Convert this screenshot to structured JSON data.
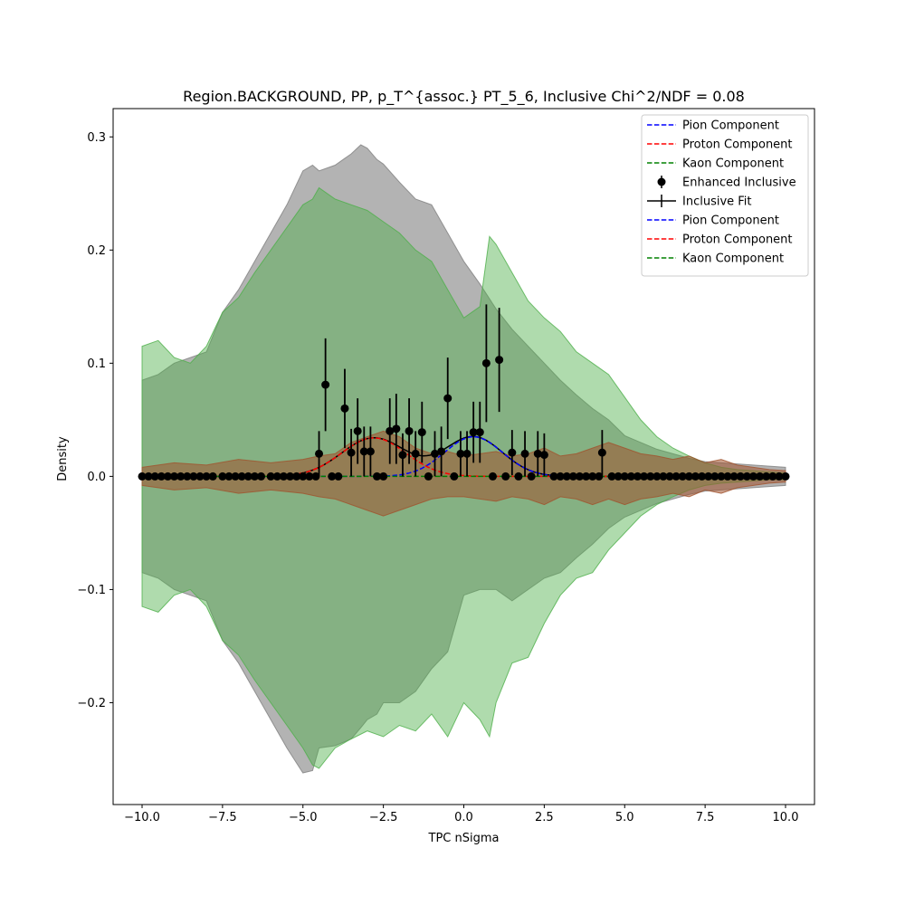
{
  "chart_data": {
    "type": "scatter",
    "title": "Region.BACKGROUND, PP, p_T^{assoc.} PT_5_6, Inclusive Chi^2/NDF = 0.08",
    "xlabel": "TPC nSigma",
    "ylabel": "Density",
    "xlim": [
      -10.9,
      10.9
    ],
    "ylim": [
      -0.29,
      0.325
    ],
    "x_ticks": [
      -10.0,
      -7.5,
      -5.0,
      -2.5,
      0.0,
      2.5,
      5.0,
      7.5,
      10.0
    ],
    "x_tick_labels": [
      "−10.0",
      "−7.5",
      "−5.0",
      "−2.5",
      "0.0",
      "2.5",
      "5.0",
      "7.5",
      "10.0"
    ],
    "y_ticks": [
      -0.2,
      -0.1,
      0.0,
      0.1,
      0.2,
      0.3
    ],
    "y_tick_labels": [
      "−0.2",
      "−0.1",
      "0.0",
      "0.1",
      "0.2",
      "0.3"
    ],
    "grid": false,
    "legend_position": "top-right",
    "legend": [
      {
        "label": "Pion Component",
        "style": "dashed",
        "color": "#0000ff"
      },
      {
        "label": "Proton Component",
        "style": "dashed",
        "color": "#ff0000"
      },
      {
        "label": "Kaon Component",
        "style": "dashed",
        "color": "#008000"
      },
      {
        "label": "Enhanced Inclusive",
        "style": "marker",
        "color": "#000000"
      },
      {
        "label": "Inclusive Fit",
        "style": "errorline",
        "color": "#000000"
      },
      {
        "label": "Pion Component",
        "style": "dashed",
        "color": "#0000ff"
      },
      {
        "label": "Proton Component",
        "style": "dashed",
        "color": "#ff0000"
      },
      {
        "label": "Kaon Component",
        "style": "dashed",
        "color": "#008000"
      }
    ],
    "bands": [
      {
        "name": "gray band",
        "color": "#808080",
        "opacity": 0.6,
        "x": [
          -10.0,
          -9.5,
          -9.0,
          -8.5,
          -8.0,
          -7.5,
          -7.0,
          -6.5,
          -6.0,
          -5.5,
          -5.0,
          -4.7,
          -4.5,
          -4.0,
          -3.5,
          -3.2,
          -3.0,
          -2.7,
          -2.5,
          -2.0,
          -1.5,
          -1.0,
          -0.5,
          0.0,
          0.5,
          1.0,
          1.5,
          2.0,
          2.5,
          3.0,
          3.5,
          4.0,
          4.5,
          5.0,
          5.5,
          6.0,
          6.5,
          7.0,
          7.5,
          8.0,
          8.5,
          9.0,
          9.5,
          10.0
        ],
        "upper": [
          0.085,
          0.09,
          0.1,
          0.105,
          0.11,
          0.145,
          0.165,
          0.19,
          0.215,
          0.24,
          0.27,
          0.275,
          0.27,
          0.275,
          0.285,
          0.293,
          0.29,
          0.28,
          0.276,
          0.26,
          0.245,
          0.24,
          0.215,
          0.19,
          0.17,
          0.148,
          0.13,
          0.115,
          0.1,
          0.085,
          0.072,
          0.06,
          0.05,
          0.036,
          0.03,
          0.024,
          0.02,
          0.016,
          0.013,
          0.012,
          0.011,
          0.01,
          0.009,
          0.008
        ],
        "lower": [
          -0.085,
          -0.09,
          -0.1,
          -0.105,
          -0.11,
          -0.145,
          -0.165,
          -0.19,
          -0.215,
          -0.24,
          -0.262,
          -0.26,
          -0.24,
          -0.238,
          -0.232,
          -0.222,
          -0.215,
          -0.21,
          -0.2,
          -0.2,
          -0.19,
          -0.17,
          -0.155,
          -0.105,
          -0.1,
          -0.1,
          -0.11,
          -0.1,
          -0.09,
          -0.085,
          -0.072,
          -0.06,
          -0.046,
          -0.036,
          -0.03,
          -0.024,
          -0.02,
          -0.016,
          -0.013,
          -0.012,
          -0.011,
          -0.01,
          -0.009,
          -0.008
        ]
      },
      {
        "name": "green band",
        "color": "#4daf4a",
        "opacity": 0.45,
        "x": [
          -10.0,
          -9.5,
          -9.0,
          -8.5,
          -8.0,
          -7.5,
          -7.0,
          -6.5,
          -6.0,
          -5.5,
          -5.0,
          -4.7,
          -4.5,
          -4.0,
          -3.5,
          -3.0,
          -2.5,
          -2.0,
          -1.5,
          -1.0,
          -0.5,
          0.0,
          0.5,
          0.8,
          1.0,
          1.5,
          2.0,
          2.5,
          3.0,
          3.5,
          4.0,
          4.5,
          5.0,
          5.5,
          6.0,
          6.5,
          7.0,
          7.5,
          8.0,
          8.5,
          9.0,
          9.5,
          10.0
        ],
        "upper": [
          0.115,
          0.12,
          0.105,
          0.1,
          0.115,
          0.145,
          0.158,
          0.18,
          0.2,
          0.22,
          0.24,
          0.245,
          0.255,
          0.245,
          0.24,
          0.235,
          0.225,
          0.215,
          0.2,
          0.19,
          0.165,
          0.14,
          0.15,
          0.212,
          0.205,
          0.18,
          0.155,
          0.14,
          0.128,
          0.11,
          0.1,
          0.09,
          0.07,
          0.05,
          0.035,
          0.025,
          0.018,
          0.012,
          0.008,
          0.006,
          0.005,
          0.004,
          0.003
        ],
        "lower": [
          -0.115,
          -0.12,
          -0.105,
          -0.1,
          -0.115,
          -0.145,
          -0.158,
          -0.18,
          -0.2,
          -0.22,
          -0.24,
          -0.255,
          -0.258,
          -0.24,
          -0.232,
          -0.225,
          -0.23,
          -0.22,
          -0.225,
          -0.21,
          -0.23,
          -0.2,
          -0.215,
          -0.23,
          -0.2,
          -0.165,
          -0.16,
          -0.13,
          -0.105,
          -0.09,
          -0.085,
          -0.065,
          -0.05,
          -0.035,
          -0.025,
          -0.018,
          -0.012,
          -0.008,
          -0.006,
          -0.005,
          -0.004,
          -0.003,
          -0.003
        ]
      },
      {
        "name": "brown band",
        "color": "#a0522d",
        "opacity": 0.55,
        "x": [
          -10.0,
          -9.0,
          -8.0,
          -7.0,
          -6.0,
          -5.0,
          -4.5,
          -4.0,
          -3.5,
          -3.0,
          -2.5,
          -2.0,
          -1.5,
          -1.0,
          -0.5,
          0.0,
          0.5,
          1.0,
          1.5,
          2.0,
          2.5,
          3.0,
          3.5,
          4.0,
          4.5,
          5.0,
          5.5,
          6.0,
          6.5,
          7.0,
          7.5,
          8.0,
          8.5,
          9.0,
          9.5,
          10.0
        ],
        "upper": [
          0.008,
          0.012,
          0.01,
          0.015,
          0.012,
          0.015,
          0.018,
          0.02,
          0.03,
          0.035,
          0.04,
          0.035,
          0.025,
          0.02,
          0.022,
          0.018,
          0.02,
          0.022,
          0.018,
          0.02,
          0.025,
          0.018,
          0.02,
          0.025,
          0.03,
          0.025,
          0.02,
          0.018,
          0.015,
          0.018,
          0.012,
          0.015,
          0.01,
          0.008,
          0.006,
          0.005
        ],
        "lower": [
          -0.008,
          -0.012,
          -0.01,
          -0.015,
          -0.012,
          -0.015,
          -0.018,
          -0.02,
          -0.025,
          -0.03,
          -0.035,
          -0.03,
          -0.025,
          -0.02,
          -0.018,
          -0.018,
          -0.02,
          -0.022,
          -0.018,
          -0.02,
          -0.025,
          -0.018,
          -0.02,
          -0.025,
          -0.02,
          -0.025,
          -0.02,
          -0.018,
          -0.015,
          -0.018,
          -0.012,
          -0.015,
          -0.01,
          -0.008,
          -0.006,
          -0.005
        ]
      }
    ],
    "components": [
      {
        "name": "Pion Component",
        "color": "#0000ff",
        "amplitude": 0.035,
        "mean": 0.3,
        "sigma": 0.9
      },
      {
        "name": "Proton Component",
        "color": "#ff0000",
        "amplitude": 0.034,
        "mean": -2.8,
        "sigma": 1.0
      },
      {
        "name": "Kaon Component",
        "color": "#008000",
        "amplitude": 0.0,
        "mean": 0.0,
        "sigma": 1.0
      }
    ],
    "zero_points_x": [
      -10.0,
      -9.8,
      -9.6,
      -9.4,
      -9.2,
      -9.0,
      -8.8,
      -8.6,
      -8.4,
      -8.2,
      -8.0,
      -7.8,
      -7.5,
      -7.3,
      -7.1,
      -6.9,
      -6.7,
      -6.5,
      -6.3,
      -6.0,
      -5.8,
      -5.6,
      -5.4,
      -5.2,
      -5.0,
      -4.8,
      -4.6,
      -4.1,
      -3.9,
      -2.7,
      -2.5,
      -1.1,
      -0.3,
      0.9,
      1.3,
      1.7,
      2.1,
      2.8,
      3.0,
      3.2,
      3.4,
      3.6,
      3.8,
      4.0,
      4.2,
      4.6,
      4.8,
      5.0,
      5.2,
      5.4,
      5.6,
      5.8,
      6.0,
      6.2,
      6.4,
      6.6,
      6.8,
      7.0,
      7.2,
      7.4,
      7.6,
      7.8,
      8.0,
      8.2,
      8.4,
      8.6,
      8.8,
      9.0,
      9.2,
      9.4,
      9.6,
      9.8,
      10.0
    ],
    "points": [
      {
        "x": -4.5,
        "y": 0.02,
        "err": 0.02
      },
      {
        "x": -4.3,
        "y": 0.081,
        "err": 0.041
      },
      {
        "x": -3.7,
        "y": 0.06,
        "err": 0.035
      },
      {
        "x": -3.5,
        "y": 0.021,
        "err": 0.021
      },
      {
        "x": -3.3,
        "y": 0.04,
        "err": 0.029
      },
      {
        "x": -3.1,
        "y": 0.022,
        "err": 0.022
      },
      {
        "x": -2.9,
        "y": 0.022,
        "err": 0.022
      },
      {
        "x": -2.3,
        "y": 0.04,
        "err": 0.029
      },
      {
        "x": -2.1,
        "y": 0.042,
        "err": 0.031
      },
      {
        "x": -1.9,
        "y": 0.019,
        "err": 0.019
      },
      {
        "x": -1.7,
        "y": 0.04,
        "err": 0.029
      },
      {
        "x": -1.5,
        "y": 0.02,
        "err": 0.02
      },
      {
        "x": -1.3,
        "y": 0.039,
        "err": 0.027
      },
      {
        "x": -0.9,
        "y": 0.02,
        "err": 0.02
      },
      {
        "x": -0.7,
        "y": 0.022,
        "err": 0.022
      },
      {
        "x": -0.5,
        "y": 0.069,
        "err": 0.036
      },
      {
        "x": -0.1,
        "y": 0.02,
        "err": 0.02
      },
      {
        "x": 0.1,
        "y": 0.02,
        "err": 0.02
      },
      {
        "x": 0.3,
        "y": 0.039,
        "err": 0.027
      },
      {
        "x": 0.5,
        "y": 0.039,
        "err": 0.027
      },
      {
        "x": 0.7,
        "y": 0.1,
        "err": 0.052
      },
      {
        "x": 1.1,
        "y": 0.103,
        "err": 0.046
      },
      {
        "x": 1.5,
        "y": 0.021,
        "err": 0.02
      },
      {
        "x": 1.9,
        "y": 0.02,
        "err": 0.02
      },
      {
        "x": 2.3,
        "y": 0.02,
        "err": 0.02
      },
      {
        "x": 2.5,
        "y": 0.019,
        "err": 0.019
      },
      {
        "x": 4.3,
        "y": 0.021,
        "err": 0.02
      }
    ]
  }
}
